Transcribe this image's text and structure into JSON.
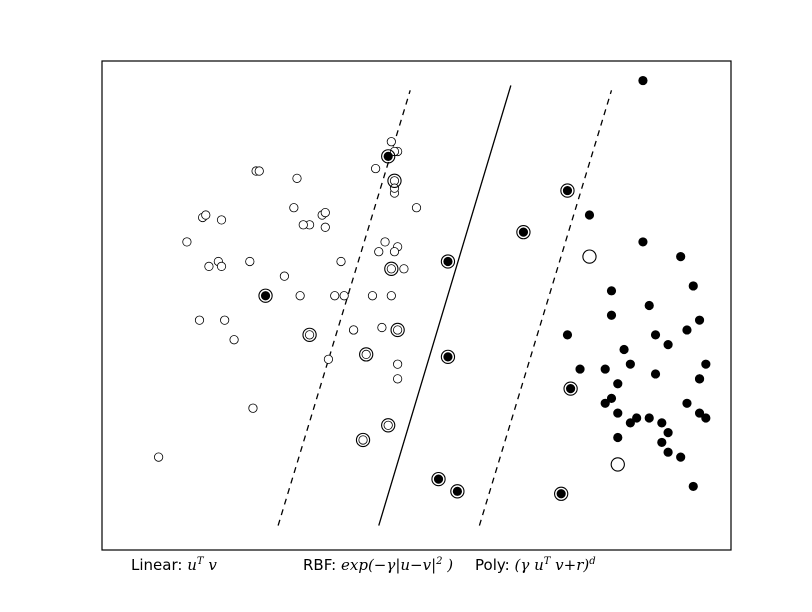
{
  "chart_data": {
    "type": "scatter",
    "xlim": [
      0,
      100
    ],
    "ylim": [
      0,
      100
    ],
    "grid": false,
    "legend": "none",
    "class_a_points": [
      [
        9,
        19
      ],
      [
        13.5,
        63
      ],
      [
        15.5,
        47
      ],
      [
        16,
        68
      ],
      [
        16.5,
        68.5
      ],
      [
        17,
        58
      ],
      [
        18.5,
        59
      ],
      [
        19,
        58
      ],
      [
        19.5,
        47
      ],
      [
        21,
        43
      ],
      [
        23.5,
        59
      ],
      [
        24,
        29
      ],
      [
        24.5,
        77.5
      ],
      [
        25,
        77.5
      ],
      [
        29,
        56
      ],
      [
        30.5,
        70
      ],
      [
        31,
        76
      ],
      [
        35,
        68.5
      ],
      [
        35.5,
        66
      ],
      [
        38,
        59
      ],
      [
        37,
        52
      ],
      [
        33,
        66.5
      ],
      [
        32,
        66.5
      ],
      [
        36,
        39
      ],
      [
        43.5,
        78
      ],
      [
        46,
        83.5
      ],
      [
        47,
        62
      ],
      [
        46.5,
        75.5
      ],
      [
        47,
        81.5
      ],
      [
        47,
        45
      ],
      [
        42,
        40
      ],
      [
        45.5,
        25.5
      ],
      [
        45,
        63
      ],
      [
        47,
        38
      ],
      [
        50,
        70
      ],
      [
        47,
        35
      ],
      [
        46.5,
        73
      ],
      [
        38.5,
        52
      ],
      [
        44,
        61
      ],
      [
        40,
        45
      ],
      [
        33,
        44
      ],
      [
        31.5,
        52
      ],
      [
        41.5,
        22.5
      ],
      [
        40,
        45
      ],
      [
        43,
        52
      ],
      [
        46,
        52
      ],
      [
        44.5,
        45.5
      ],
      [
        46,
        57.5
      ],
      [
        46.5,
        81.5
      ],
      [
        48,
        57.5
      ],
      [
        46.5,
        61
      ],
      [
        46.5,
        74
      ],
      [
        35.5,
        69
      ],
      [
        19,
        67.5
      ]
    ],
    "class_b_points": [
      [
        26,
        52
      ],
      [
        45.5,
        80.5
      ],
      [
        53.5,
        14.5
      ],
      [
        56.5,
        12
      ],
      [
        55,
        59
      ],
      [
        55,
        39.5
      ],
      [
        73,
        11.5
      ],
      [
        67,
        65
      ],
      [
        74,
        44
      ],
      [
        76,
        37
      ],
      [
        74.5,
        33
      ],
      [
        74,
        73.5
      ],
      [
        77.5,
        68.5
      ],
      [
        82,
        34
      ],
      [
        86,
        96
      ],
      [
        80,
        37
      ],
      [
        84,
        26
      ],
      [
        87,
        27
      ],
      [
        81,
        31
      ],
      [
        81,
        48
      ],
      [
        81,
        53
      ],
      [
        86,
        63
      ],
      [
        82,
        23
      ],
      [
        87,
        50
      ],
      [
        90,
        24
      ],
      [
        88,
        44
      ],
      [
        89,
        26
      ],
      [
        90,
        20
      ],
      [
        94,
        54
      ],
      [
        93,
        45
      ],
      [
        95,
        35
      ],
      [
        96,
        38
      ],
      [
        95,
        47
      ],
      [
        92,
        19
      ],
      [
        94,
        13
      ],
      [
        93,
        30
      ],
      [
        85,
        27
      ],
      [
        90,
        42
      ],
      [
        83,
        41
      ],
      [
        84,
        38
      ],
      [
        80,
        30
      ],
      [
        82,
        28
      ],
      [
        92,
        60
      ],
      [
        95,
        28
      ],
      [
        96,
        27
      ],
      [
        95,
        35
      ],
      [
        89,
        22
      ],
      [
        88,
        36
      ]
    ],
    "support_vectors": [
      [
        45.5,
        80.5
      ],
      [
        46.5,
        75.5
      ],
      [
        26,
        52
      ],
      [
        42,
        40
      ],
      [
        45.5,
        25.5
      ],
      [
        47,
        45
      ],
      [
        46,
        57.5
      ],
      [
        55,
        59
      ],
      [
        55,
        39.5
      ],
      [
        33,
        44
      ],
      [
        41.5,
        22.5
      ],
      [
        73,
        11.5
      ],
      [
        56.5,
        12
      ],
      [
        53.5,
        14.5
      ],
      [
        67,
        65
      ],
      [
        74.5,
        33
      ],
      [
        74,
        73.5
      ],
      [
        77.5,
        60
      ],
      [
        82,
        17.5
      ]
    ],
    "lines": [
      {
        "style": "dashed",
        "x": [
          28,
          49
        ],
        "y": [
          5,
          94
        ]
      },
      {
        "style": "solid",
        "x": [
          44,
          65
        ],
        "y": [
          5,
          95
        ]
      },
      {
        "style": "dashed",
        "x": [
          60,
          81
        ],
        "y": [
          5,
          94
        ]
      }
    ]
  },
  "captions": {
    "linear_label": "Linear:",
    "linear_formula": "u",
    "linear_formula_sup": "T",
    "linear_formula_tail": " v",
    "rbf_label": "RBF:",
    "rbf_formula": "exp(−γ|u−v|",
    "rbf_formula_sup": "2",
    "rbf_formula_tail": " )",
    "poly_label": "Poly:",
    "poly_formula": "(γ u",
    "poly_formula_sup": "T",
    "poly_formula_mid": " v+r)",
    "poly_formula_sup2": "d"
  }
}
